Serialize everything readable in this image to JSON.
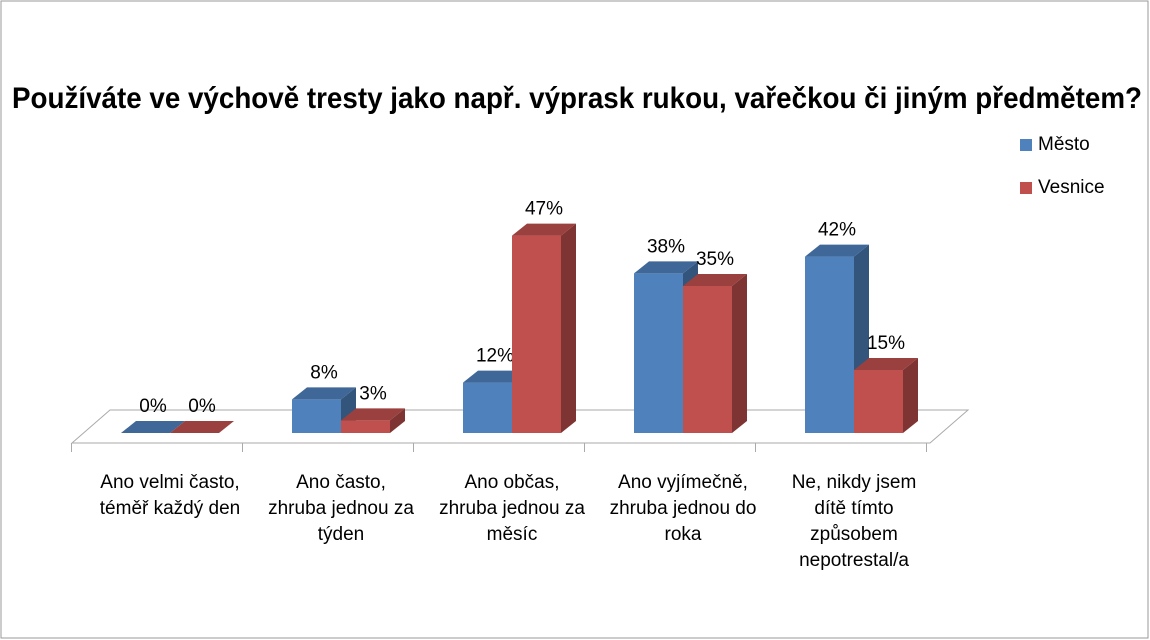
{
  "chart_data": {
    "type": "bar",
    "title": "Používáte ve výchově tresty jako např. výprask rukou, vařečkou či jiným předmětem?",
    "categories": [
      "Ano velmi často, téměř každý den",
      "Ano často, zhruba jednou za týden",
      "Ano občas, zhruba jednou za měsíc",
      "Ano vyjímečně, zhruba jednou do roka",
      "Ne, nikdy jsem dítě tímto způsobem nepotrestal/a"
    ],
    "series": [
      {
        "name": "Město",
        "color": "#4f81bd",
        "values": [
          0,
          8,
          12,
          38,
          42
        ],
        "value_labels": [
          "0%",
          "8%",
          "12%",
          "38%",
          "42%"
        ]
      },
      {
        "name": "Vesnice",
        "color": "#c0504d",
        "values": [
          0,
          3,
          47,
          35,
          15
        ],
        "value_labels": [
          "0%",
          "3%",
          "47%",
          "35%",
          "15%"
        ]
      }
    ],
    "legend": "right"
  }
}
